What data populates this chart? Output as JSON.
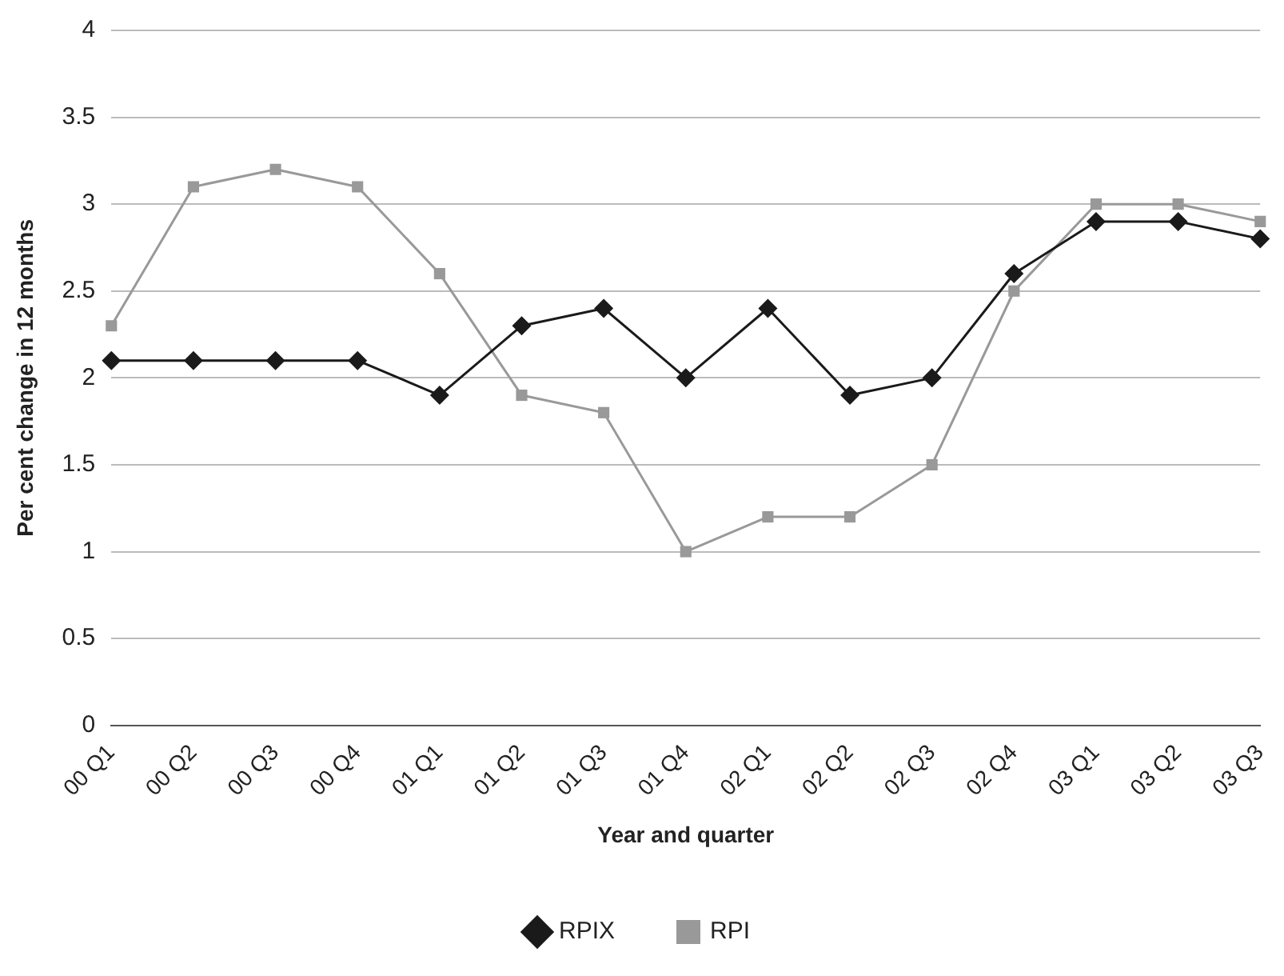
{
  "chart_data": {
    "type": "line",
    "xlabel": "Year and quarter",
    "ylabel": "Per cent change in 12 months",
    "categories": [
      "00 Q1",
      "00 Q2",
      "00 Q3",
      "00 Q4",
      "01 Q1",
      "01 Q2",
      "01 Q3",
      "01 Q4",
      "02 Q1",
      "02 Q2",
      "02 Q3",
      "02 Q4",
      "03 Q1",
      "03 Q2",
      "03 Q3"
    ],
    "series": [
      {
        "name": "RPIX",
        "color": "#1a1a1a",
        "marker": "diamond",
        "values": [
          2.1,
          2.1,
          2.1,
          2.1,
          1.9,
          2.3,
          2.4,
          2.0,
          2.4,
          1.9,
          2.0,
          2.6,
          2.9,
          2.9,
          2.8
        ]
      },
      {
        "name": "RPI",
        "color": "#999999",
        "marker": "square",
        "values": [
          2.3,
          3.1,
          3.2,
          3.1,
          2.6,
          1.9,
          1.8,
          1.0,
          1.2,
          1.2,
          1.5,
          2.5,
          3.0,
          3.0,
          2.9
        ]
      }
    ],
    "ylim": [
      0,
      4
    ],
    "yticks": [
      0,
      0.5,
      1,
      1.5,
      2,
      2.5,
      3,
      3.5,
      4
    ],
    "grid": "y",
    "legend": "bottom",
    "line_style": "solid"
  }
}
